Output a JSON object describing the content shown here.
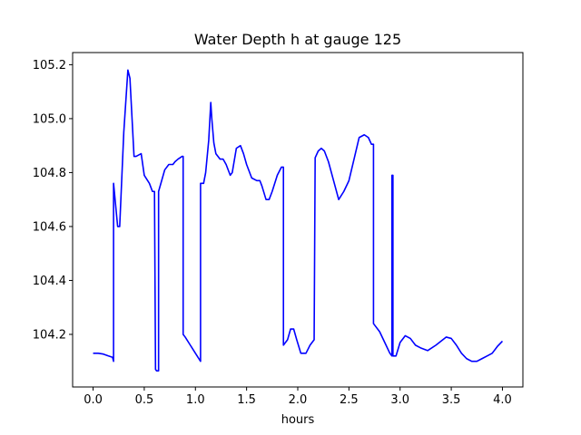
{
  "chart_data": {
    "type": "line",
    "title": "Water Depth h at gauge 125",
    "xlabel": "hours",
    "ylabel": "",
    "xlim": [
      -0.2,
      4.2
    ],
    "ylim": [
      104.005,
      105.245
    ],
    "xticks": [
      0.0,
      0.5,
      1.0,
      1.5,
      2.0,
      2.5,
      3.0,
      3.5,
      4.0
    ],
    "xtick_labels": [
      "0.0",
      "0.5",
      "1.0",
      "1.5",
      "2.0",
      "2.5",
      "3.0",
      "3.5",
      "4.0"
    ],
    "yticks": [
      104.2,
      104.4,
      104.6,
      104.8,
      105.0,
      105.2
    ],
    "ytick_labels": [
      "104.2",
      "104.4",
      "104.6",
      "104.8",
      "105.0",
      "105.2"
    ],
    "grid": false,
    "series": [
      {
        "color": "#0000ff",
        "x": [
          0.0,
          0.05,
          0.1,
          0.15,
          0.19,
          0.2,
          0.2,
          0.21,
          0.24,
          0.26,
          0.3,
          0.34,
          0.36,
          0.4,
          0.42,
          0.47,
          0.5,
          0.55,
          0.58,
          0.6,
          0.61,
          0.62,
          0.64,
          0.64,
          0.67,
          0.7,
          0.74,
          0.78,
          0.8,
          0.83,
          0.87,
          0.88,
          0.88,
          0.9,
          0.95,
          1.0,
          1.05,
          1.05,
          1.06,
          1.08,
          1.1,
          1.13,
          1.15,
          1.16,
          1.18,
          1.2,
          1.24,
          1.27,
          1.3,
          1.34,
          1.36,
          1.4,
          1.44,
          1.47,
          1.5,
          1.55,
          1.6,
          1.63,
          1.65,
          1.69,
          1.72,
          1.75,
          1.8,
          1.84,
          1.86,
          1.86,
          1.9,
          1.93,
          1.96,
          1.99,
          2.03,
          2.08,
          2.12,
          2.16,
          2.17,
          2.2,
          2.23,
          2.26,
          2.3,
          2.35,
          2.4,
          2.45,
          2.5,
          2.55,
          2.6,
          2.65,
          2.69,
          2.72,
          2.74,
          2.74,
          2.8,
          2.85,
          2.9,
          2.92,
          2.92,
          2.93,
          2.93,
          2.96,
          3.0,
          3.05,
          3.1,
          3.15,
          3.2,
          3.27,
          3.35,
          3.45,
          3.5,
          3.55,
          3.6,
          3.65,
          3.7,
          3.75,
          3.8,
          3.85,
          3.9,
          3.95,
          4.0
        ],
        "values": [
          104.13,
          104.13,
          104.127,
          104.12,
          104.115,
          104.1,
          104.76,
          104.72,
          104.6,
          104.6,
          104.95,
          105.18,
          105.15,
          104.86,
          104.86,
          104.87,
          104.79,
          104.76,
          104.73,
          104.73,
          104.07,
          104.065,
          104.065,
          104.73,
          104.77,
          104.81,
          104.83,
          104.83,
          104.84,
          104.85,
          104.86,
          104.86,
          104.2,
          104.19,
          104.16,
          104.13,
          104.1,
          104.76,
          104.76,
          104.76,
          104.8,
          104.92,
          105.06,
          105.0,
          104.91,
          104.87,
          104.85,
          104.85,
          104.83,
          104.79,
          104.8,
          104.89,
          104.9,
          104.87,
          104.83,
          104.78,
          104.77,
          104.77,
          104.75,
          104.7,
          104.7,
          104.73,
          104.79,
          104.82,
          104.82,
          104.16,
          104.18,
          104.22,
          104.22,
          104.18,
          104.13,
          104.13,
          104.16,
          104.18,
          104.855,
          104.88,
          104.89,
          104.88,
          104.84,
          104.77,
          104.7,
          104.73,
          104.77,
          104.85,
          104.93,
          104.94,
          104.93,
          104.905,
          104.905,
          104.24,
          104.21,
          104.17,
          104.13,
          104.12,
          104.79,
          104.79,
          104.12,
          104.12,
          104.17,
          104.195,
          104.185,
          104.16,
          104.15,
          104.14,
          104.16,
          104.19,
          104.185,
          104.16,
          104.13,
          104.11,
          104.1,
          104.1,
          104.11,
          104.12,
          104.13,
          104.155,
          104.175
        ]
      }
    ]
  }
}
